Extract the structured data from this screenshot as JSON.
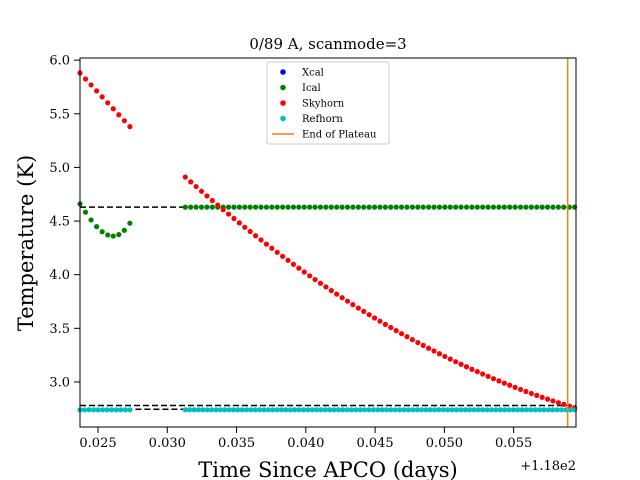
{
  "chart_data": {
    "type": "scatter",
    "title": "0/89 A, scanmode=3",
    "xlabel": "Time Since APCO (days)",
    "ylabel": "Temperature (K)",
    "x_offset_label": "+1.18e2",
    "xlim": [
      0.0237,
      0.0595
    ],
    "ylim": [
      2.58,
      6.02
    ],
    "x_ticks": [
      0.025,
      0.03,
      0.035,
      0.04,
      0.045,
      0.05,
      0.055
    ],
    "x_tick_labels": [
      "0.025",
      "0.030",
      "0.035",
      "0.040",
      "0.045",
      "0.050",
      "0.055"
    ],
    "y_ticks": [
      3.0,
      3.5,
      4.0,
      4.5,
      5.0,
      5.5,
      6.0
    ],
    "y_tick_labels": [
      "3.0",
      "3.5",
      "4.0",
      "4.5",
      "5.0",
      "5.5",
      "6.0"
    ],
    "grid": false,
    "legend_position": "top-center",
    "series": [
      {
        "name": "Xcal",
        "color": "#0000ff",
        "kind": "points",
        "segments": []
      },
      {
        "name": "Ical",
        "color": "#008000",
        "kind": "points",
        "segments": [
          {
            "x_start": 0.0237,
            "x_end": 0.0273,
            "n": 10,
            "shape": "dip",
            "y_start": 4.66,
            "y_min": 4.36,
            "x_min": 0.0261,
            "y_end": 4.48
          },
          {
            "x_start": 0.0313,
            "x_end": 0.0594,
            "n": 73,
            "shape": "flat",
            "y": 4.63
          }
        ]
      },
      {
        "name": "Skyhorn",
        "color": "#ff0000",
        "kind": "points",
        "segments": [
          {
            "x_start": 0.0237,
            "x_end": 0.0273,
            "n": 10,
            "shape": "linear",
            "y_start": 5.88,
            "y_end": 5.38
          },
          {
            "x_start": 0.0313,
            "x_end": 0.0594,
            "n": 73,
            "shape": "quadratic",
            "y_start": 4.91,
            "y_end": 2.76
          }
        ]
      },
      {
        "name": "Refhorn",
        "color": "#00bfbf",
        "kind": "points",
        "segments": [
          {
            "x_start": 0.0237,
            "x_end": 0.0273,
            "n": 12,
            "shape": "flat",
            "y": 2.74
          },
          {
            "x_start": 0.0313,
            "x_end": 0.0594,
            "n": 90,
            "shape": "flat",
            "y": 2.74
          }
        ]
      },
      {
        "name": "End of Plateau",
        "color": "#ff7f0e",
        "kind": "vline",
        "x": 0.0589
      }
    ],
    "reference_lines": [
      {
        "y": 4.63,
        "x_start": 0.0237,
        "x_end": 0.0315,
        "color": "#000000",
        "style": "dashed"
      },
      {
        "y": 2.745,
        "x_start": 0.0264,
        "x_end": 0.0315,
        "color": "#000000",
        "style": "dashed"
      },
      {
        "y": 2.78,
        "x_start": 0.0237,
        "x_end": 0.0595,
        "color": "#000000",
        "style": "dashed"
      }
    ]
  }
}
